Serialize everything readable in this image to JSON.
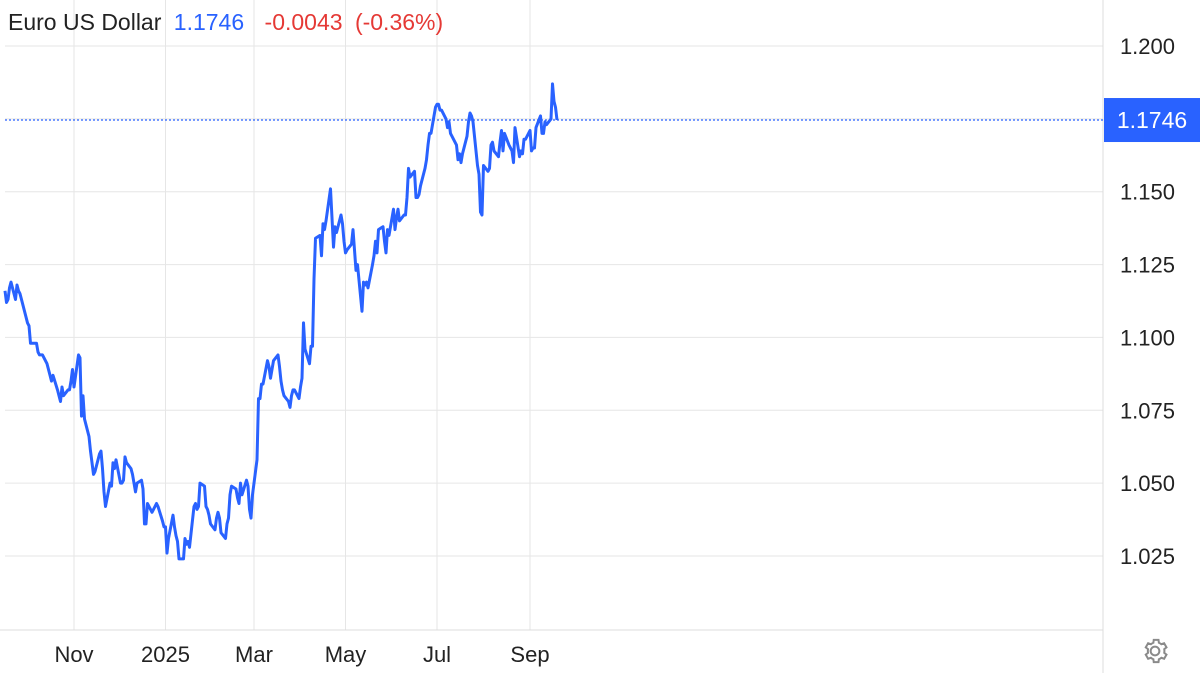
{
  "header": {
    "name": "Euro US Dollar",
    "price": "1.1746",
    "change": "-0.0043",
    "change_pct": "(-0.36%)"
  },
  "colors": {
    "line": "#2962ff",
    "change_negative": "#e53935",
    "grid": "#e6e6e6",
    "text": "#222222"
  },
  "settings_icon": "gear-icon",
  "chart_data": {
    "type": "line",
    "title": "Euro US Dollar",
    "xlabel": "",
    "ylabel": "",
    "ylim": [
      1.0,
      1.21
    ],
    "x_tick_labels": [
      "Nov",
      "2025",
      "Mar",
      "May",
      "Jul",
      "Sep"
    ],
    "x_tick_dates": [
      "2024-11-01",
      "2025-01-01",
      "2025-03-01",
      "2025-05-01",
      "2025-07-01",
      "2025-09-01"
    ],
    "y_ticks": [
      "1.025",
      "1.050",
      "1.075",
      "1.100",
      "1.125",
      "1.150",
      "1.200"
    ],
    "last_value_label": "1.1746",
    "grid": true,
    "series": [
      {
        "values": [
          [
            "2024-09-16",
            1.116
          ],
          [
            "2024-09-17",
            1.112
          ],
          [
            "2024-09-18",
            1.113
          ],
          [
            "2024-09-19",
            1.117
          ],
          [
            "2024-09-20",
            1.119
          ],
          [
            "2024-09-23",
            1.113
          ],
          [
            "2024-09-24",
            1.118
          ],
          [
            "2024-09-25",
            1.116
          ],
          [
            "2024-09-26",
            1.115
          ],
          [
            "2024-09-27",
            1.113
          ],
          [
            "2024-09-30",
            1.107
          ],
          [
            "2024-10-01",
            1.105
          ],
          [
            "2024-10-02",
            1.104
          ],
          [
            "2024-10-03",
            1.098
          ],
          [
            "2024-10-04",
            1.098
          ],
          [
            "2024-10-07",
            1.098
          ],
          [
            "2024-10-08",
            1.095
          ],
          [
            "2024-10-09",
            1.094
          ],
          [
            "2024-10-10",
            1.094
          ],
          [
            "2024-10-11",
            1.094
          ],
          [
            "2024-10-14",
            1.091
          ],
          [
            "2024-10-15",
            1.089
          ],
          [
            "2024-10-16",
            1.087
          ],
          [
            "2024-10-17",
            1.085
          ],
          [
            "2024-10-18",
            1.087
          ],
          [
            "2024-10-21",
            1.082
          ],
          [
            "2024-10-22",
            1.08
          ],
          [
            "2024-10-23",
            1.078
          ],
          [
            "2024-10-24",
            1.083
          ],
          [
            "2024-10-25",
            1.08
          ],
          [
            "2024-10-28",
            1.082
          ],
          [
            "2024-10-29",
            1.082
          ],
          [
            "2024-10-30",
            1.085
          ],
          [
            "2024-10-31",
            1.089
          ],
          [
            "2024-11-01",
            1.083
          ],
          [
            "2024-11-04",
            1.094
          ],
          [
            "2024-11-05",
            1.093
          ],
          [
            "2024-11-06",
            1.073
          ],
          [
            "2024-11-07",
            1.08
          ],
          [
            "2024-11-08",
            1.072
          ],
          [
            "2024-11-11",
            1.066
          ],
          [
            "2024-11-12",
            1.061
          ],
          [
            "2024-11-13",
            1.057
          ],
          [
            "2024-11-14",
            1.053
          ],
          [
            "2024-11-15",
            1.054
          ],
          [
            "2024-11-18",
            1.06
          ],
          [
            "2024-11-19",
            1.061
          ],
          [
            "2024-11-20",
            1.055
          ],
          [
            "2024-11-21",
            1.047
          ],
          [
            "2024-11-22",
            1.042
          ],
          [
            "2024-11-25",
            1.05
          ],
          [
            "2024-11-26",
            1.049
          ],
          [
            "2024-11-27",
            1.057
          ],
          [
            "2024-11-28",
            1.055
          ],
          [
            "2024-11-29",
            1.058
          ],
          [
            "2024-12-02",
            1.05
          ],
          [
            "2024-12-03",
            1.05
          ],
          [
            "2024-12-04",
            1.051
          ],
          [
            "2024-12-05",
            1.059
          ],
          [
            "2024-12-06",
            1.057
          ],
          [
            "2024-12-09",
            1.055
          ],
          [
            "2024-12-10",
            1.053
          ],
          [
            "2024-12-11",
            1.05
          ],
          [
            "2024-12-12",
            1.047
          ],
          [
            "2024-12-13",
            1.05
          ],
          [
            "2024-12-16",
            1.051
          ],
          [
            "2024-12-17",
            1.048
          ],
          [
            "2024-12-18",
            1.036
          ],
          [
            "2024-12-19",
            1.036
          ],
          [
            "2024-12-20",
            1.043
          ],
          [
            "2024-12-23",
            1.04
          ],
          [
            "2024-12-24",
            1.041
          ],
          [
            "2024-12-26",
            1.043
          ],
          [
            "2024-12-27",
            1.042
          ],
          [
            "2024-12-30",
            1.037
          ],
          [
            "2024-12-31",
            1.035
          ],
          [
            "2025-01-01",
            1.035
          ],
          [
            "2025-01-02",
            1.026
          ],
          [
            "2025-01-03",
            1.031
          ],
          [
            "2025-01-06",
            1.039
          ],
          [
            "2025-01-07",
            1.035
          ],
          [
            "2025-01-08",
            1.032
          ],
          [
            "2025-01-09",
            1.03
          ],
          [
            "2025-01-10",
            1.024
          ],
          [
            "2025-01-13",
            1.024
          ],
          [
            "2025-01-14",
            1.031
          ],
          [
            "2025-01-15",
            1.029
          ],
          [
            "2025-01-16",
            1.03
          ],
          [
            "2025-01-17",
            1.028
          ],
          [
            "2025-01-20",
            1.042
          ],
          [
            "2025-01-21",
            1.043
          ],
          [
            "2025-01-22",
            1.041
          ],
          [
            "2025-01-23",
            1.042
          ],
          [
            "2025-01-24",
            1.05
          ],
          [
            "2025-01-27",
            1.049
          ],
          [
            "2025-01-28",
            1.042
          ],
          [
            "2025-01-29",
            1.041
          ],
          [
            "2025-01-30",
            1.039
          ],
          [
            "2025-01-31",
            1.036
          ],
          [
            "2025-02-03",
            1.034
          ],
          [
            "2025-02-04",
            1.038
          ],
          [
            "2025-02-05",
            1.04
          ],
          [
            "2025-02-06",
            1.038
          ],
          [
            "2025-02-07",
            1.033
          ],
          [
            "2025-02-10",
            1.031
          ],
          [
            "2025-02-11",
            1.036
          ],
          [
            "2025-02-12",
            1.038
          ],
          [
            "2025-02-13",
            1.046
          ],
          [
            "2025-02-14",
            1.049
          ],
          [
            "2025-02-17",
            1.048
          ],
          [
            "2025-02-18",
            1.045
          ],
          [
            "2025-02-19",
            1.043
          ],
          [
            "2025-02-20",
            1.05
          ],
          [
            "2025-02-21",
            1.046
          ],
          [
            "2025-02-24",
            1.051
          ],
          [
            "2025-02-25",
            1.049
          ],
          [
            "2025-02-26",
            1.041
          ],
          [
            "2025-02-27",
            1.038
          ],
          [
            "2025-02-28",
            1.046
          ],
          [
            "2025-03-03",
            1.058
          ],
          [
            "2025-03-04",
            1.079
          ],
          [
            "2025-03-05",
            1.079
          ],
          [
            "2025-03-06",
            1.084
          ],
          [
            "2025-03-07",
            1.084
          ],
          [
            "2025-03-10",
            1.092
          ],
          [
            "2025-03-11",
            1.09
          ],
          [
            "2025-03-12",
            1.086
          ],
          [
            "2025-03-13",
            1.089
          ],
          [
            "2025-03-14",
            1.092
          ],
          [
            "2025-03-17",
            1.094
          ],
          [
            "2025-03-18",
            1.09
          ],
          [
            "2025-03-19",
            1.085
          ],
          [
            "2025-03-20",
            1.082
          ],
          [
            "2025-03-21",
            1.08
          ],
          [
            "2025-03-24",
            1.078
          ],
          [
            "2025-03-25",
            1.076
          ],
          [
            "2025-03-26",
            1.08
          ],
          [
            "2025-03-27",
            1.082
          ],
          [
            "2025-03-28",
            1.082
          ],
          [
            "2025-03-31",
            1.079
          ],
          [
            "2025-04-01",
            1.083
          ],
          [
            "2025-04-02",
            1.086
          ],
          [
            "2025-04-03",
            1.105
          ],
          [
            "2025-04-04",
            1.096
          ],
          [
            "2025-04-07",
            1.091
          ],
          [
            "2025-04-08",
            1.097
          ],
          [
            "2025-04-09",
            1.097
          ],
          [
            "2025-04-10",
            1.12
          ],
          [
            "2025-04-11",
            1.134
          ],
          [
            "2025-04-14",
            1.135
          ],
          [
            "2025-04-15",
            1.128
          ],
          [
            "2025-04-16",
            1.139
          ],
          [
            "2025-04-17",
            1.137
          ],
          [
            "2025-04-18",
            1.14
          ],
          [
            "2025-04-21",
            1.151
          ],
          [
            "2025-04-22",
            1.141
          ],
          [
            "2025-04-23",
            1.131
          ],
          [
            "2025-04-24",
            1.138
          ],
          [
            "2025-04-25",
            1.136
          ],
          [
            "2025-04-28",
            1.142
          ],
          [
            "2025-04-29",
            1.139
          ],
          [
            "2025-04-30",
            1.133
          ],
          [
            "2025-05-01",
            1.129
          ],
          [
            "2025-05-02",
            1.13
          ],
          [
            "2025-05-05",
            1.132
          ],
          [
            "2025-05-06",
            1.137
          ],
          [
            "2025-05-07",
            1.13
          ],
          [
            "2025-05-08",
            1.123
          ],
          [
            "2025-05-09",
            1.125
          ],
          [
            "2025-05-12",
            1.109
          ],
          [
            "2025-05-13",
            1.119
          ],
          [
            "2025-05-14",
            1.118
          ],
          [
            "2025-05-15",
            1.119
          ],
          [
            "2025-05-16",
            1.117
          ],
          [
            "2025-05-19",
            1.125
          ],
          [
            "2025-05-20",
            1.128
          ],
          [
            "2025-05-21",
            1.133
          ],
          [
            "2025-05-22",
            1.129
          ],
          [
            "2025-05-23",
            1.137
          ],
          [
            "2025-05-26",
            1.138
          ],
          [
            "2025-05-27",
            1.133
          ],
          [
            "2025-05-28",
            1.129
          ],
          [
            "2025-05-29",
            1.137
          ],
          [
            "2025-05-30",
            1.135
          ],
          [
            "2025-06-02",
            1.144
          ],
          [
            "2025-06-03",
            1.137
          ],
          [
            "2025-06-04",
            1.141
          ],
          [
            "2025-06-05",
            1.144
          ],
          [
            "2025-06-06",
            1.14
          ],
          [
            "2025-06-09",
            1.142
          ],
          [
            "2025-06-10",
            1.142
          ],
          [
            "2025-06-11",
            1.148
          ],
          [
            "2025-06-12",
            1.158
          ],
          [
            "2025-06-13",
            1.155
          ],
          [
            "2025-06-16",
            1.157
          ],
          [
            "2025-06-17",
            1.148
          ],
          [
            "2025-06-18",
            1.148
          ],
          [
            "2025-06-19",
            1.149
          ],
          [
            "2025-06-20",
            1.152
          ],
          [
            "2025-06-23",
            1.158
          ],
          [
            "2025-06-24",
            1.161
          ],
          [
            "2025-06-25",
            1.166
          ],
          [
            "2025-06-26",
            1.17
          ],
          [
            "2025-06-27",
            1.17
          ],
          [
            "2025-06-30",
            1.179
          ],
          [
            "2025-07-01",
            1.18
          ],
          [
            "2025-07-02",
            1.18
          ],
          [
            "2025-07-03",
            1.178
          ],
          [
            "2025-07-04",
            1.178
          ],
          [
            "2025-07-07",
            1.175
          ],
          [
            "2025-07-08",
            1.172
          ],
          [
            "2025-07-09",
            1.174
          ],
          [
            "2025-07-10",
            1.17
          ],
          [
            "2025-07-11",
            1.169
          ],
          [
            "2025-07-14",
            1.166
          ],
          [
            "2025-07-15",
            1.161
          ],
          [
            "2025-07-16",
            1.163
          ],
          [
            "2025-07-17",
            1.16
          ],
          [
            "2025-07-18",
            1.163
          ],
          [
            "2025-07-21",
            1.169
          ],
          [
            "2025-07-22",
            1.174
          ],
          [
            "2025-07-23",
            1.177
          ],
          [
            "2025-07-24",
            1.176
          ],
          [
            "2025-07-25",
            1.174
          ],
          [
            "2025-07-28",
            1.159
          ],
          [
            "2025-07-29",
            1.156
          ],
          [
            "2025-07-30",
            1.143
          ],
          [
            "2025-07-31",
            1.142
          ],
          [
            "2025-08-01",
            1.159
          ],
          [
            "2025-08-04",
            1.157
          ],
          [
            "2025-08-05",
            1.158
          ],
          [
            "2025-08-06",
            1.166
          ],
          [
            "2025-08-07",
            1.167
          ],
          [
            "2025-08-08",
            1.164
          ],
          [
            "2025-08-11",
            1.162
          ],
          [
            "2025-08-12",
            1.167
          ],
          [
            "2025-08-13",
            1.171
          ],
          [
            "2025-08-14",
            1.164
          ],
          [
            "2025-08-15",
            1.17
          ],
          [
            "2025-08-18",
            1.166
          ],
          [
            "2025-08-19",
            1.165
          ],
          [
            "2025-08-20",
            1.164
          ],
          [
            "2025-08-21",
            1.16
          ],
          [
            "2025-08-22",
            1.172
          ],
          [
            "2025-08-25",
            1.162
          ],
          [
            "2025-08-26",
            1.164
          ],
          [
            "2025-08-27",
            1.163
          ],
          [
            "2025-08-28",
            1.168
          ],
          [
            "2025-08-29",
            1.168
          ],
          [
            "2025-09-01",
            1.171
          ],
          [
            "2025-09-02",
            1.164
          ],
          [
            "2025-09-03",
            1.165
          ],
          [
            "2025-09-04",
            1.165
          ],
          [
            "2025-09-05",
            1.172
          ],
          [
            "2025-09-08",
            1.176
          ],
          [
            "2025-09-09",
            1.17
          ],
          [
            "2025-09-10",
            1.17
          ],
          [
            "2025-09-11",
            1.174
          ],
          [
            "2025-09-12",
            1.173
          ],
          [
            "2025-09-15",
            1.175
          ],
          [
            "2025-09-16",
            1.187
          ],
          [
            "2025-09-17",
            1.181
          ],
          [
            "2025-09-18",
            1.179
          ],
          [
            "2025-09-19",
            1.1746
          ]
        ]
      }
    ]
  }
}
